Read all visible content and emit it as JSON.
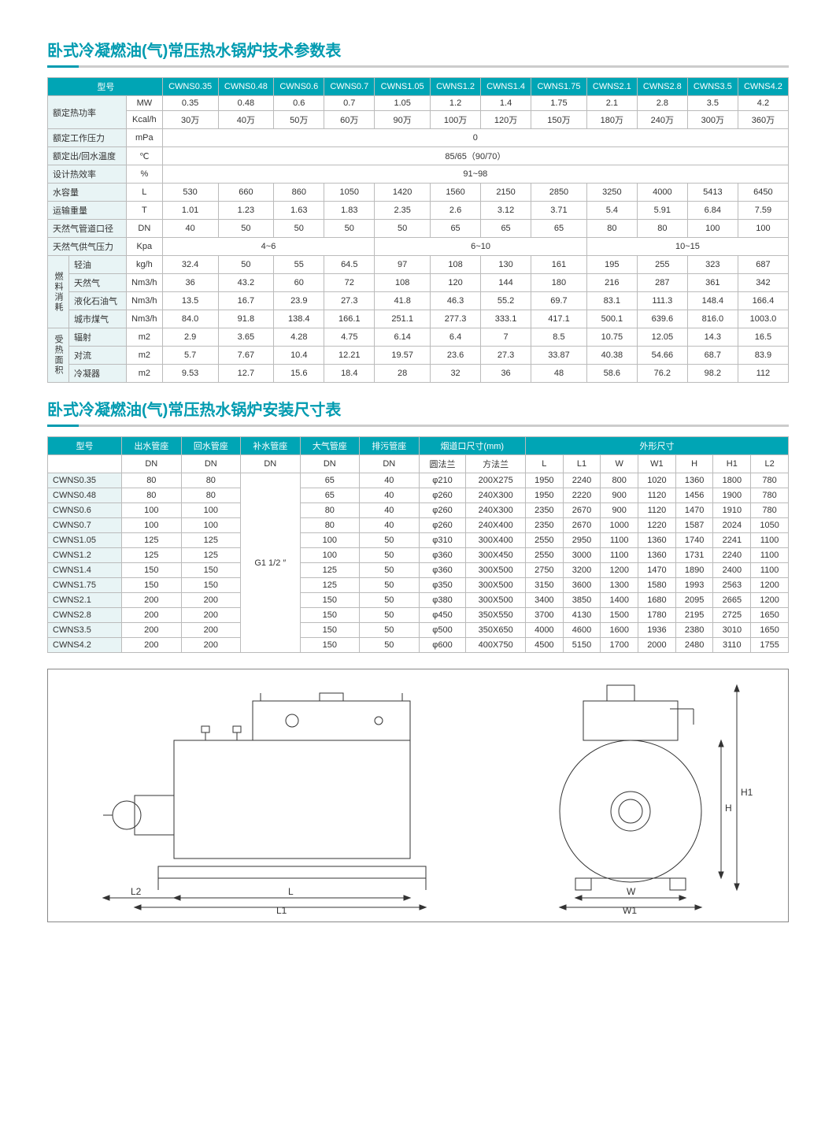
{
  "title1": "卧式冷凝燃油(气)常压热水锅炉技术参数表",
  "title2": "卧式冷凝燃油(气)常压热水锅炉安装尺寸表",
  "models": [
    "CWNS0.35",
    "CWNS0.48",
    "CWNS0.6",
    "CWNS0.7",
    "CWNS1.05",
    "CWNS1.2",
    "CWNS1.4",
    "CWNS1.75",
    "CWNS2.1",
    "CWNS2.8",
    "CWNS3.5",
    "CWNS4.2"
  ],
  "t1_head_model": "型号",
  "t1_rows": {
    "rated_power": {
      "label": "额定热功率",
      "unit1": "MW",
      "vals1": [
        "0.35",
        "0.48",
        "0.6",
        "0.7",
        "1.05",
        "1.2",
        "1.4",
        "1.75",
        "2.1",
        "2.8",
        "3.5",
        "4.2"
      ],
      "unit2": "Kcal/h",
      "vals2": [
        "30万",
        "40万",
        "50万",
        "60万",
        "90万",
        "100万",
        "120万",
        "150万",
        "180万",
        "240万",
        "300万",
        "360万"
      ]
    },
    "pressure": {
      "label": "额定工作压力",
      "unit": "mPa",
      "val": "0"
    },
    "temp": {
      "label": "额定出/回水温度",
      "unit": "℃",
      "val": "85/65（90/70）"
    },
    "eff": {
      "label": "设计热效率",
      "unit": "%",
      "val": "91~98"
    },
    "water": {
      "label": "水容量",
      "unit": "L",
      "vals": [
        "530",
        "660",
        "860",
        "1050",
        "1420",
        "1560",
        "2150",
        "2850",
        "3250",
        "4000",
        "5413",
        "6450"
      ]
    },
    "weight": {
      "label": "运输重量",
      "unit": "T",
      "vals": [
        "1.01",
        "1.23",
        "1.63",
        "1.83",
        "2.35",
        "2.6",
        "3.12",
        "3.71",
        "5.4",
        "5.91",
        "6.84",
        "7.59"
      ]
    },
    "pipe": {
      "label": "天然气管道口径",
      "unit": "DN",
      "vals": [
        "40",
        "50",
        "50",
        "50",
        "50",
        "65",
        "65",
        "65",
        "80",
        "80",
        "100",
        "100"
      ]
    },
    "supply": {
      "label": "天然气供气压力",
      "unit": "Kpa",
      "seg1": "4~6",
      "seg2": "6~10",
      "seg3": "10~15"
    }
  },
  "fuel_label": "燃料消耗",
  "fuel_rows": [
    {
      "label": "轻油",
      "unit": "kg/h",
      "vals": [
        "32.4",
        "50",
        "55",
        "64.5",
        "97",
        "108",
        "130",
        "161",
        "195",
        "255",
        "323",
        "687"
      ]
    },
    {
      "label": "天然气",
      "unit": "Nm3/h",
      "vals": [
        "36",
        "43.2",
        "60",
        "72",
        "108",
        "120",
        "144",
        "180",
        "216",
        "287",
        "361",
        "342"
      ]
    },
    {
      "label": "液化石油气",
      "unit": "Nm3/h",
      "vals": [
        "13.5",
        "16.7",
        "23.9",
        "27.3",
        "41.8",
        "46.3",
        "55.2",
        "69.7",
        "83.1",
        "111.3",
        "148.4",
        "166.4"
      ]
    },
    {
      "label": "城市煤气",
      "unit": "Nm3/h",
      "vals": [
        "84.0",
        "91.8",
        "138.4",
        "166.1",
        "251.1",
        "277.3",
        "333.1",
        "417.1",
        "500.1",
        "639.6",
        "816.0",
        "1003.0"
      ]
    }
  ],
  "heat_label": "受热面积",
  "heat_rows": [
    {
      "label": "辐射",
      "unit": "m2",
      "vals": [
        "2.9",
        "3.65",
        "4.28",
        "4.75",
        "6.14",
        "6.4",
        "7",
        "8.5",
        "10.75",
        "12.05",
        "14.3",
        "16.5"
      ]
    },
    {
      "label": "对流",
      "unit": "m2",
      "vals": [
        "5.7",
        "7.67",
        "10.4",
        "12.21",
        "19.57",
        "23.6",
        "27.3",
        "33.87",
        "40.38",
        "54.66",
        "68.7",
        "83.9"
      ]
    },
    {
      "label": "冷凝器",
      "unit": "m2",
      "vals": [
        "9.53",
        "12.7",
        "15.6",
        "18.4",
        "28",
        "32",
        "36",
        "48",
        "58.6",
        "76.2",
        "98.2",
        "112"
      ]
    }
  ],
  "t2_head": {
    "model": "型号",
    "out": "出水管座",
    "in": "回水管座",
    "sup": "补水管座",
    "atm": "大气管座",
    "drain": "排污管座",
    "smoke": "烟道口尺寸(mm)",
    "dim": "外形尺寸"
  },
  "t2_sub": {
    "dn": "DN",
    "round": "圆法兰",
    "square": "方法兰",
    "L": "L",
    "L1": "L1",
    "W": "W",
    "W1": "W1",
    "H": "H",
    "H1": "H1",
    "L2": "L2"
  },
  "t2_sup_merged": "G1 1/2 ″",
  "t2_rows": [
    {
      "m": "CWNS0.35",
      "out": "80",
      "in": "80",
      "atm": "65",
      "drain": "40",
      "rd": "φ210",
      "sq": "200X275",
      "L": "1950",
      "L1": "2240",
      "W": "800",
      "W1": "1020",
      "H": "1360",
      "H1": "1800",
      "L2": "780"
    },
    {
      "m": "CWNS0.48",
      "out": "80",
      "in": "80",
      "atm": "65",
      "drain": "40",
      "rd": "φ260",
      "sq": "240X300",
      "L": "1950",
      "L1": "2220",
      "W": "900",
      "W1": "1120",
      "H": "1456",
      "H1": "1900",
      "L2": "780"
    },
    {
      "m": "CWNS0.6",
      "out": "100",
      "in": "100",
      "atm": "80",
      "drain": "40",
      "rd": "φ260",
      "sq": "240X300",
      "L": "2350",
      "L1": "2670",
      "W": "900",
      "W1": "1120",
      "H": "1470",
      "H1": "1910",
      "L2": "780"
    },
    {
      "m": "CWNS0.7",
      "out": "100",
      "in": "100",
      "atm": "80",
      "drain": "40",
      "rd": "φ260",
      "sq": "240X400",
      "L": "2350",
      "L1": "2670",
      "W": "1000",
      "W1": "1220",
      "H": "1587",
      "H1": "2024",
      "L2": "1050"
    },
    {
      "m": "CWNS1.05",
      "out": "125",
      "in": "125",
      "atm": "100",
      "drain": "50",
      "rd": "φ310",
      "sq": "300X400",
      "L": "2550",
      "L1": "2950",
      "W": "1100",
      "W1": "1360",
      "H": "1740",
      "H1": "2241",
      "L2": "1100"
    },
    {
      "m": "CWNS1.2",
      "out": "125",
      "in": "125",
      "atm": "100",
      "drain": "50",
      "rd": "φ360",
      "sq": "300X450",
      "L": "2550",
      "L1": "3000",
      "W": "1100",
      "W1": "1360",
      "H": "1731",
      "H1": "2240",
      "L2": "1100"
    },
    {
      "m": "CWNS1.4",
      "out": "150",
      "in": "150",
      "atm": "125",
      "drain": "50",
      "rd": "φ360",
      "sq": "300X500",
      "L": "2750",
      "L1": "3200",
      "W": "1200",
      "W1": "1470",
      "H": "1890",
      "H1": "2400",
      "L2": "1100"
    },
    {
      "m": "CWNS1.75",
      "out": "150",
      "in": "150",
      "atm": "125",
      "drain": "50",
      "rd": "φ350",
      "sq": "300X500",
      "L": "3150",
      "L1": "3600",
      "W": "1300",
      "W1": "1580",
      "H": "1993",
      "H1": "2563",
      "L2": "1200"
    },
    {
      "m": "CWNS2.1",
      "out": "200",
      "in": "200",
      "atm": "150",
      "drain": "50",
      "rd": "φ380",
      "sq": "300X500",
      "L": "3400",
      "L1": "3850",
      "W": "1400",
      "W1": "1680",
      "H": "2095",
      "H1": "2665",
      "L2": "1200"
    },
    {
      "m": "CWNS2.8",
      "out": "200",
      "in": "200",
      "atm": "150",
      "drain": "50",
      "rd": "φ450",
      "sq": "350X550",
      "L": "3700",
      "L1": "4130",
      "W": "1500",
      "W1": "1780",
      "H": "2195",
      "H1": "2725",
      "L2": "1650"
    },
    {
      "m": "CWNS3.5",
      "out": "200",
      "in": "200",
      "atm": "150",
      "drain": "50",
      "rd": "φ500",
      "sq": "350X650",
      "L": "4000",
      "L1": "4600",
      "W": "1600",
      "W1": "1936",
      "H": "2380",
      "H1": "3010",
      "L2": "1650"
    },
    {
      "m": "CWNS4.2",
      "out": "200",
      "in": "200",
      "atm": "150",
      "drain": "50",
      "rd": "φ600",
      "sq": "400X750",
      "L": "4500",
      "L1": "5150",
      "W": "1700",
      "W1": "2000",
      "H": "2480",
      "H1": "3110",
      "L2": "1755"
    }
  ],
  "diagram_labels": {
    "L": "L",
    "L1": "L1",
    "L2": "L2",
    "W": "W",
    "W1": "W1",
    "H": "H",
    "H1": "H1"
  }
}
